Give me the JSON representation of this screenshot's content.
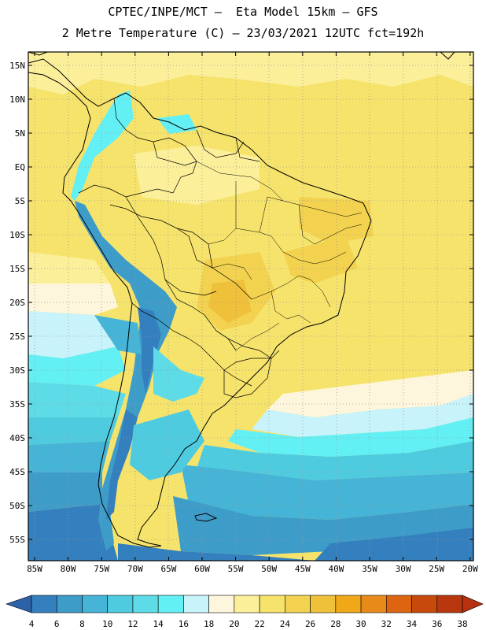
{
  "title": {
    "line1": "CPTEC/INPE/MCT –  Eta Model 15km – GFS",
    "line2": "2 Metre Temperature (C) – 23/03/2021 12UTC fct=192h"
  },
  "lat_labels": [
    "15N",
    "10N",
    "5N",
    "EQ",
    "5S",
    "10S",
    "15S",
    "20S",
    "25S",
    "30S",
    "35S",
    "40S",
    "45S",
    "50S",
    "55S"
  ],
  "lon_labels": [
    "85W",
    "80W",
    "75W",
    "70W",
    "65W",
    "60W",
    "55W",
    "50W",
    "45W",
    "40W",
    "35W",
    "30W",
    "25W",
    "20W"
  ],
  "colorbar": {
    "labels": [
      "4",
      "6",
      "8",
      "10",
      "12",
      "14",
      "16",
      "18",
      "20",
      "22",
      "24",
      "26",
      "28",
      "30",
      "32",
      "34",
      "36",
      "38"
    ],
    "colors": [
      "#2e62a8",
      "#347fbd",
      "#3e9cc9",
      "#45b4d6",
      "#4fcbe0",
      "#5ddce8",
      "#63f0f5",
      "#c8f3fb",
      "#fdf6dc",
      "#fbef9a",
      "#f6e36c",
      "#f2d24f",
      "#efc03a",
      "#f0a818",
      "#e88a1a",
      "#dd6512",
      "#c74a0c",
      "#b8370f",
      "#b8300f"
    ]
  }
}
